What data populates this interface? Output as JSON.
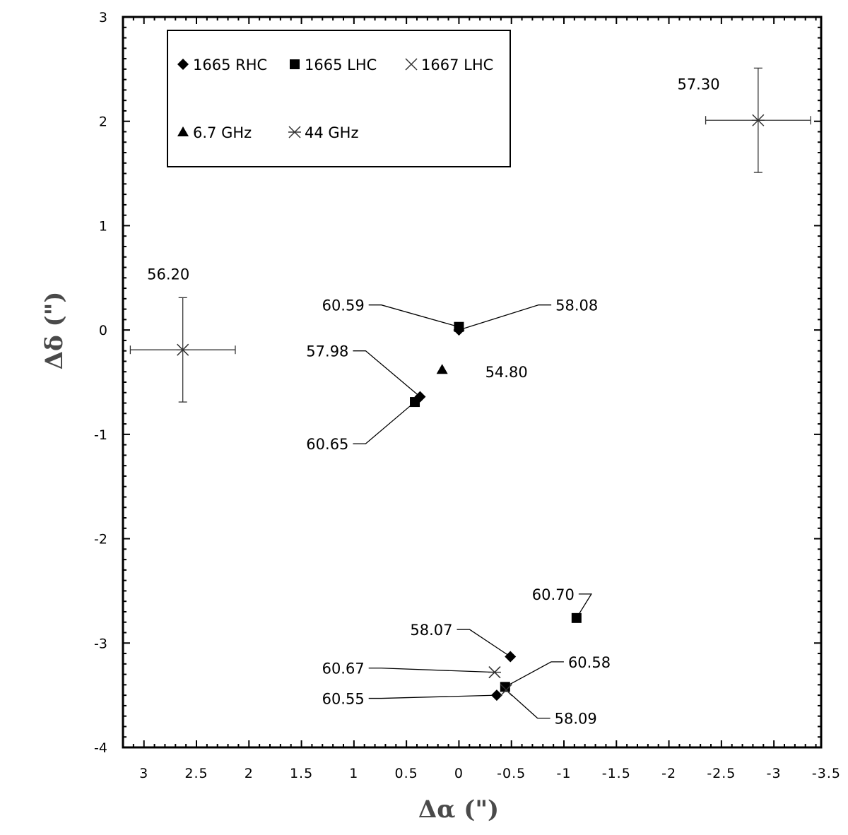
{
  "chart_data": {
    "type": "scatter",
    "xlabel": "Δα (\")",
    "ylabel": "Δδ (\")",
    "xlim": [
      3.2,
      -3.45
    ],
    "ylim": [
      -4,
      3
    ],
    "x_ticks": [
      3,
      2.5,
      2,
      1.5,
      1,
      0.5,
      0,
      -0.5,
      -1,
      -1.5,
      -2,
      -2.5,
      -3,
      -3.5
    ],
    "x_tick_labels": [
      "3",
      "2.5",
      "2",
      "1.5",
      "1",
      "0.5",
      "0",
      "-0.5",
      "-1",
      "-1.5",
      "-2",
      "-2.5",
      "-3",
      "-3.5"
    ],
    "y_ticks": [
      3,
      2,
      1,
      0,
      -1,
      -2,
      -3,
      -4
    ],
    "y_tick_labels": [
      "3",
      "2",
      "1",
      "0",
      "-1",
      "-2",
      "-3",
      "-4"
    ],
    "legend": {
      "placement": "top-left",
      "entries": [
        {
          "name": "1665 RHC",
          "marker": "diamond"
        },
        {
          "name": "1665 LHC",
          "marker": "square"
        },
        {
          "name": "1667 LHC",
          "marker": "x"
        },
        {
          "name": "6.7 GHz",
          "marker": "triangle"
        },
        {
          "name": "44 GHz",
          "marker": "asterisk"
        }
      ]
    },
    "series": [
      {
        "name": "1665 RHC",
        "marker": "diamond",
        "points": [
          {
            "x": 0.0,
            "y": 0.0
          },
          {
            "x": 0.37,
            "y": -0.64
          },
          {
            "x": -0.49,
            "y": -3.13
          },
          {
            "x": -0.36,
            "y": -3.5
          }
        ]
      },
      {
        "name": "1665 LHC",
        "marker": "square",
        "points": [
          {
            "x": 0.0,
            "y": 0.03
          },
          {
            "x": 0.42,
            "y": -0.69
          },
          {
            "x": -1.12,
            "y": -2.76
          },
          {
            "x": -0.44,
            "y": -3.42
          }
        ]
      },
      {
        "name": "1667 LHC",
        "marker": "x",
        "points": [
          {
            "x": -0.34,
            "y": -3.28
          },
          {
            "x": -0.45,
            "y": -3.45
          }
        ]
      },
      {
        "name": "6.7 GHz",
        "marker": "triangle",
        "points": [
          {
            "x": 0.16,
            "y": -0.38
          }
        ]
      },
      {
        "name": "44 GHz",
        "marker": "asterisk",
        "points": [
          {
            "x": 2.63,
            "y": -0.19,
            "xerr": 0.5,
            "yerr": 0.5
          },
          {
            "x": -2.85,
            "y": 2.01,
            "xerr": 0.5,
            "yerr": 0.5
          },
          {
            "x": -0.34,
            "y": -3.28
          }
        ]
      }
    ],
    "annotations": [
      {
        "text": "57.30",
        "x": -2.08,
        "y": 2.36,
        "leader": false
      },
      {
        "text": "56.20",
        "x": 2.97,
        "y": 0.54,
        "leader": false
      },
      {
        "text": "60.59",
        "x": 0.9,
        "y": 0.24,
        "leader": true,
        "to_x": 0.0,
        "to_y": 0.03
      },
      {
        "text": "58.08",
        "x": -0.92,
        "y": 0.24,
        "leader": true,
        "to_x": 0.0,
        "to_y": 0.0
      },
      {
        "text": "57.98",
        "x": 1.05,
        "y": -0.2,
        "leader": true,
        "to_x": 0.37,
        "to_y": -0.64
      },
      {
        "text": "54.80",
        "x": -0.25,
        "y": -0.4,
        "leader": false
      },
      {
        "text": "60.65",
        "x": 1.05,
        "y": -1.09,
        "leader": true,
        "to_x": 0.42,
        "to_y": -0.69
      },
      {
        "text": "60.70",
        "x": -1.1,
        "y": -2.53,
        "leader": true,
        "to_x": -1.12,
        "to_y": -2.76
      },
      {
        "text": "58.07",
        "x": 0.06,
        "y": -2.87,
        "leader": true,
        "to_x": -0.49,
        "to_y": -3.13
      },
      {
        "text": "60.58",
        "x": -1.04,
        "y": -3.18,
        "leader": true,
        "to_x": -0.44,
        "to_y": -3.42
      },
      {
        "text": "60.67",
        "x": 0.9,
        "y": -3.24,
        "leader": true,
        "to_x": -0.34,
        "to_y": -3.28
      },
      {
        "text": "60.55",
        "x": 0.9,
        "y": -3.53,
        "leader": true,
        "to_x": -0.36,
        "to_y": -3.5
      },
      {
        "text": "58.09",
        "x": -0.91,
        "y": -3.72,
        "leader": true,
        "to_x": -0.45,
        "to_y": -3.45
      }
    ]
  }
}
